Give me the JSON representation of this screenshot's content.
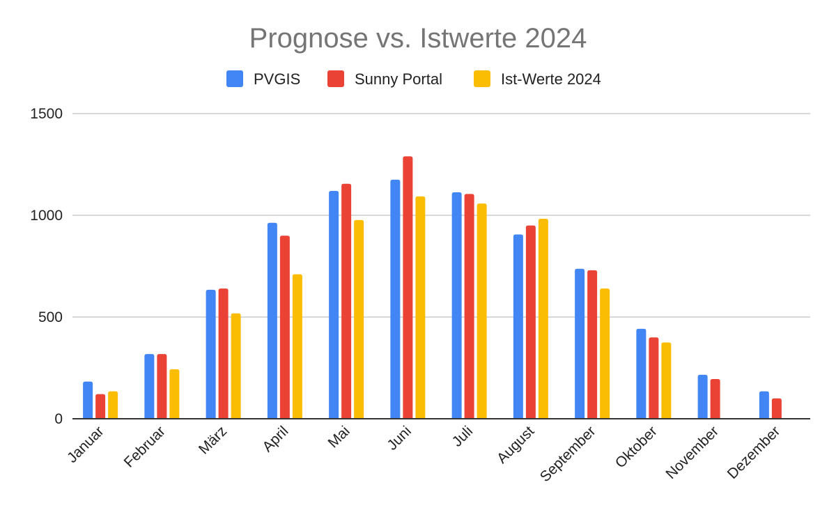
{
  "chart_data": {
    "type": "bar",
    "title": "Prognose vs. Istwerte 2024",
    "xlabel": "",
    "ylabel": "",
    "ylim": [
      0,
      1500
    ],
    "yticks": [
      0,
      500,
      1000,
      1500
    ],
    "grid": true,
    "legend_position": "top",
    "categories": [
      "Januar",
      "Februar",
      "März",
      "April",
      "Mai",
      "Juni",
      "Juli",
      "August",
      "September",
      "Oktober",
      "November",
      "Dezember"
    ],
    "series": [
      {
        "name": "PVGIS",
        "color": "#4285F4",
        "values": [
          183,
          318,
          634,
          963,
          1120,
          1175,
          1113,
          906,
          737,
          442,
          216,
          135
        ]
      },
      {
        "name": "Sunny Portal",
        "color": "#EA4335",
        "values": [
          121,
          318,
          640,
          900,
          1155,
          1290,
          1105,
          950,
          730,
          400,
          195,
          100
        ]
      },
      {
        "name": "Ist-Werte 2024",
        "color": "#FBBC04",
        "values": [
          135,
          243,
          518,
          710,
          977,
          1093,
          1058,
          983,
          640,
          375,
          null,
          null
        ]
      }
    ]
  }
}
